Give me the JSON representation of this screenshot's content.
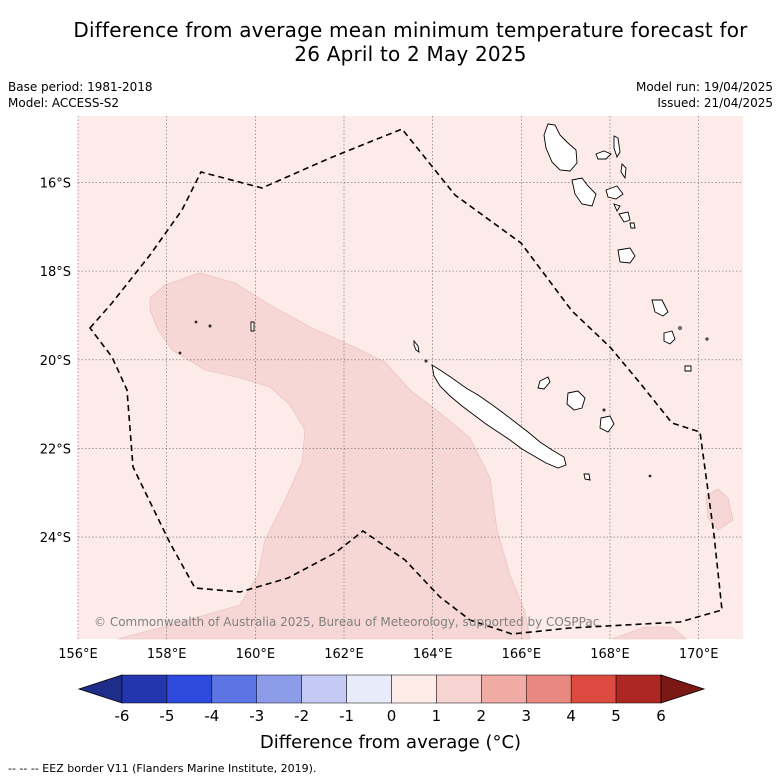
{
  "title_line1": "Difference from average mean minimum temperature forecast for",
  "title_line2": "26 April to 2 May 2025",
  "meta": {
    "base_period": "Base period: 1981-2018",
    "model": "Model: ACCESS-S2",
    "model_run": "Model run: 19/04/2025",
    "issued": "Issued: 21/04/2025"
  },
  "map": {
    "lon_ticks": [
      "156°E",
      "158°E",
      "160°E",
      "162°E",
      "164°E",
      "166°E",
      "168°E",
      "170°E"
    ],
    "lat_ticks": [
      "16°S",
      "18°S",
      "20°S",
      "22°S",
      "24°S"
    ],
    "lon_values": [
      156,
      158,
      160,
      162,
      164,
      166,
      168,
      170
    ],
    "lat_values": [
      -16,
      -18,
      -20,
      -22,
      -24
    ],
    "extent": {
      "lon": [
        156,
        171
      ],
      "lat": [
        -26.3,
        -14.5
      ]
    },
    "background_anomaly_class": "0 to 1",
    "warm_anomaly_class": "1 to 2",
    "gridlines": true,
    "copyright": "© Commonwealth of Australia 2025, Bureau of Meteorology, supported by COSPPac"
  },
  "colorbar": {
    "ticks": [
      "-6",
      "-5",
      "-4",
      "-3",
      "-2",
      "-1",
      "0",
      "1",
      "2",
      "3",
      "4",
      "5",
      "6"
    ],
    "colors": [
      "#1f2d8a",
      "#2236ad",
      "#2e4bde",
      "#5c74e4",
      "#8c9ce9",
      "#c4caf4",
      "#e8ebfa",
      "#fdebe8",
      "#f7d4d2",
      "#f0aba4",
      "#e88880",
      "#dd4a3f",
      "#ae2823",
      "#7b1813"
    ],
    "label": "Difference from average (°C)"
  },
  "footnote": "-- -- -- EEZ border V11 (Flanders Marine Institute, 2019)."
}
